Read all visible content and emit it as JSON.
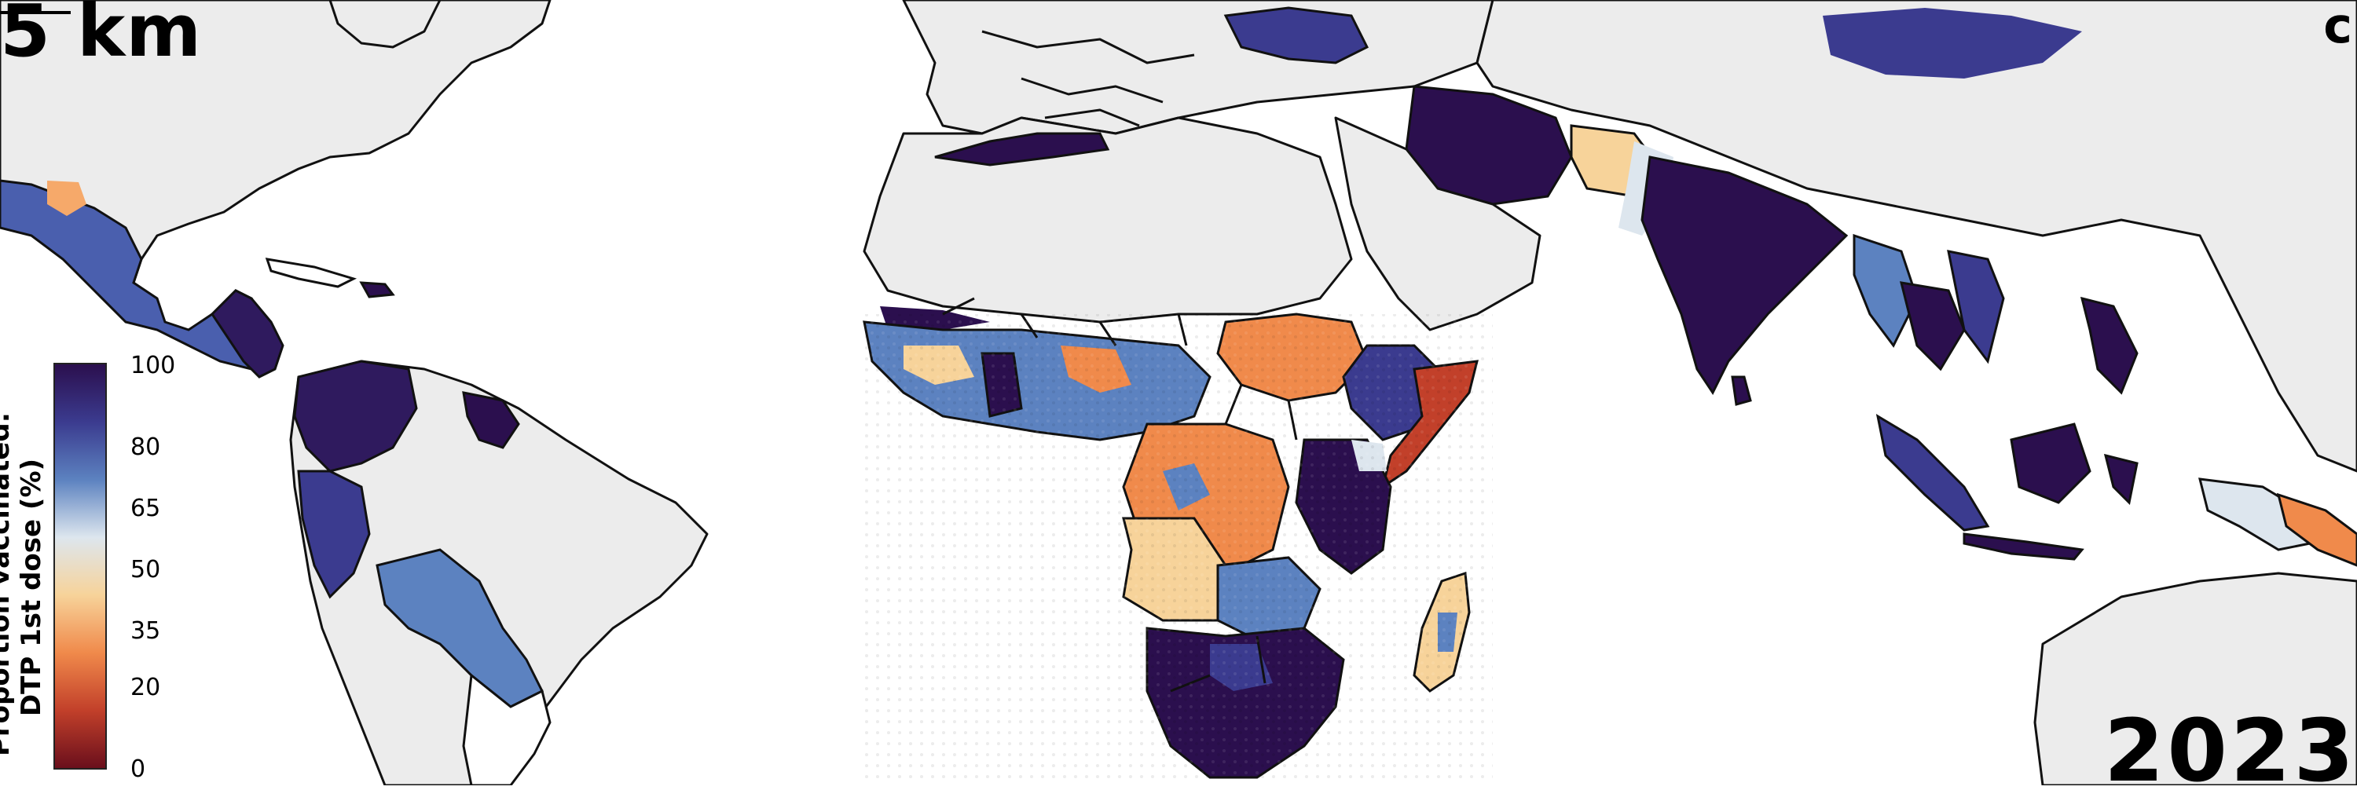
{
  "overlay": {
    "scale_label": "5 km",
    "top_right_partial": "c",
    "year": "2023"
  },
  "legend": {
    "title_line1": "Proportion vaccinated:",
    "title_line2": "DTP 1st dose (%)",
    "ticks": [
      "100",
      "80",
      "65",
      "50",
      "35",
      "20",
      "0"
    ],
    "colors": [
      "#2b0f4e",
      "#3b3b8f",
      "#5c82c0",
      "#dde6ee",
      "#f7d39a",
      "#f08a4b",
      "#c2402a",
      "#6a0f1c"
    ]
  }
}
